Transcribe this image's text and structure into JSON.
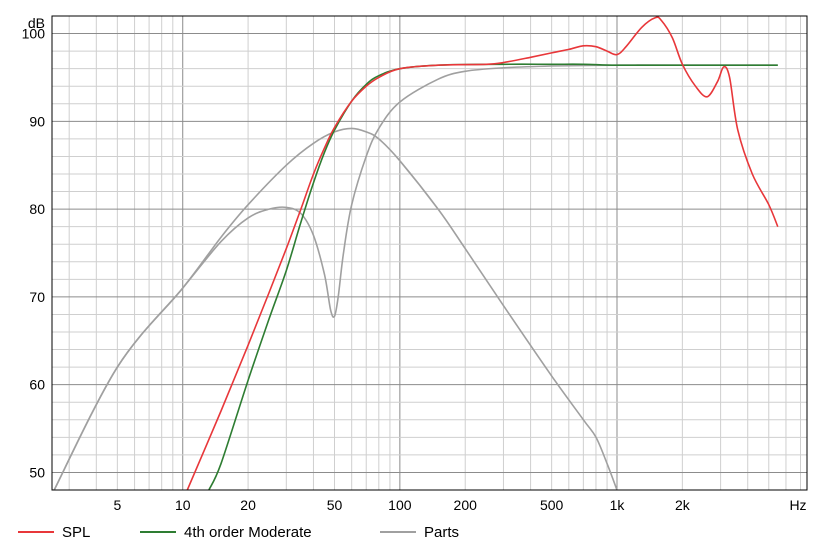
{
  "chart_data": {
    "type": "line",
    "title": "",
    "xlabel": "Hz",
    "ylabel": "dB",
    "x_scale": "log",
    "xlim": [
      2.5,
      7500
    ],
    "ylim": [
      48,
      102
    ],
    "grid": true,
    "x_tick_labels": [
      {
        "value": 5,
        "label": "5"
      },
      {
        "value": 10,
        "label": "10"
      },
      {
        "value": 20,
        "label": "20"
      },
      {
        "value": 50,
        "label": "50"
      },
      {
        "value": 100,
        "label": "100"
      },
      {
        "value": 200,
        "label": "200"
      },
      {
        "value": 500,
        "label": "500"
      },
      {
        "value": 1000,
        "label": "1k"
      },
      {
        "value": 2000,
        "label": "2k"
      }
    ],
    "y_tick_labels": [
      {
        "value": 50,
        "label": "50"
      },
      {
        "value": 60,
        "label": "60"
      },
      {
        "value": 70,
        "label": "70"
      },
      {
        "value": 80,
        "label": "80"
      },
      {
        "value": 90,
        "label": "90"
      },
      {
        "value": 100,
        "label": "100"
      }
    ],
    "series": [
      {
        "name": "SPL",
        "color": "#e8373a",
        "points": [
          [
            10.5,
            48
          ],
          [
            15,
            57
          ],
          [
            20,
            64.5
          ],
          [
            25,
            70.5
          ],
          [
            30,
            75.5
          ],
          [
            35,
            80
          ],
          [
            40,
            84
          ],
          [
            45,
            87
          ],
          [
            50,
            89.3
          ],
          [
            60,
            92.3
          ],
          [
            70,
            94
          ],
          [
            80,
            95
          ],
          [
            100,
            96
          ],
          [
            150,
            96.4
          ],
          [
            250,
            96.5
          ],
          [
            300,
            96.7
          ],
          [
            400,
            97.3
          ],
          [
            500,
            97.8
          ],
          [
            600,
            98.2
          ],
          [
            700,
            98.6
          ],
          [
            800,
            98.5
          ],
          [
            900,
            98
          ],
          [
            1000,
            97.6
          ],
          [
            1100,
            98.5
          ],
          [
            1300,
            100.7
          ],
          [
            1500,
            101.8
          ],
          [
            1600,
            101.5
          ],
          [
            1800,
            99.5
          ],
          [
            2000,
            96.5
          ],
          [
            2300,
            94
          ],
          [
            2600,
            92.8
          ],
          [
            2900,
            94.5
          ],
          [
            3100,
            96.2
          ],
          [
            3300,
            95
          ],
          [
            3600,
            89
          ],
          [
            4200,
            84
          ],
          [
            5000,
            80.5
          ],
          [
            5500,
            78
          ]
        ]
      },
      {
        "name": "4th order Moderate",
        "color": "#2e7d32",
        "points": [
          [
            13.2,
            48
          ],
          [
            15,
            51
          ],
          [
            20,
            60.5
          ],
          [
            25,
            67.5
          ],
          [
            30,
            73
          ],
          [
            35,
            78.5
          ],
          [
            40,
            83
          ],
          [
            45,
            86.5
          ],
          [
            50,
            89
          ],
          [
            60,
            92.3
          ],
          [
            70,
            94.2
          ],
          [
            80,
            95.2
          ],
          [
            100,
            96
          ],
          [
            150,
            96.4
          ],
          [
            300,
            96.5
          ],
          [
            500,
            96.5
          ],
          [
            700,
            96.5
          ],
          [
            1000,
            96.4
          ],
          [
            2000,
            96.4
          ],
          [
            5500,
            96.4
          ]
        ]
      },
      {
        "name": "Parts",
        "color": "#a0a0a0",
        "points": [
          [
            2.5,
            47.5
          ],
          [
            5,
            62
          ],
          [
            10,
            71
          ],
          [
            15,
            76.3
          ],
          [
            20,
            79
          ],
          [
            25,
            80
          ],
          [
            30,
            80.2
          ],
          [
            35,
            79.5
          ],
          [
            40,
            77
          ],
          [
            45,
            72.5
          ],
          [
            48,
            68.5
          ],
          [
            50,
            67.8
          ],
          [
            52,
            70
          ],
          [
            55,
            75
          ],
          [
            60,
            80.5
          ],
          [
            70,
            86
          ],
          [
            80,
            89.2
          ],
          [
            100,
            92.2
          ],
          [
            150,
            94.8
          ],
          [
            200,
            95.7
          ],
          [
            300,
            96.1
          ],
          [
            500,
            96.3
          ],
          [
            1000,
            96.4
          ],
          [
            2000,
            96.4
          ],
          [
            5500,
            96.4
          ]
        ]
      },
      {
        "name": "Parts",
        "color": "#a0a0a0",
        "points": [
          [
            2.5,
            47.5
          ],
          [
            5,
            62
          ],
          [
            10,
            71
          ],
          [
            15,
            76.8
          ],
          [
            20,
            80.5
          ],
          [
            30,
            85
          ],
          [
            40,
            87.5
          ],
          [
            50,
            88.8
          ],
          [
            60,
            89.2
          ],
          [
            70,
            88.8
          ],
          [
            80,
            88
          ],
          [
            100,
            85.5
          ],
          [
            150,
            80
          ],
          [
            200,
            75.5
          ],
          [
            300,
            69
          ],
          [
            500,
            61
          ],
          [
            700,
            56
          ],
          [
            800,
            54
          ],
          [
            900,
            51
          ],
          [
            1000,
            48
          ]
        ]
      }
    ]
  },
  "legend": [
    {
      "label": "SPL",
      "color": "#e8373a"
    },
    {
      "label": "4th order Moderate",
      "color": "#2e7d32"
    },
    {
      "label": "Parts",
      "color": "#a0a0a0"
    }
  ]
}
